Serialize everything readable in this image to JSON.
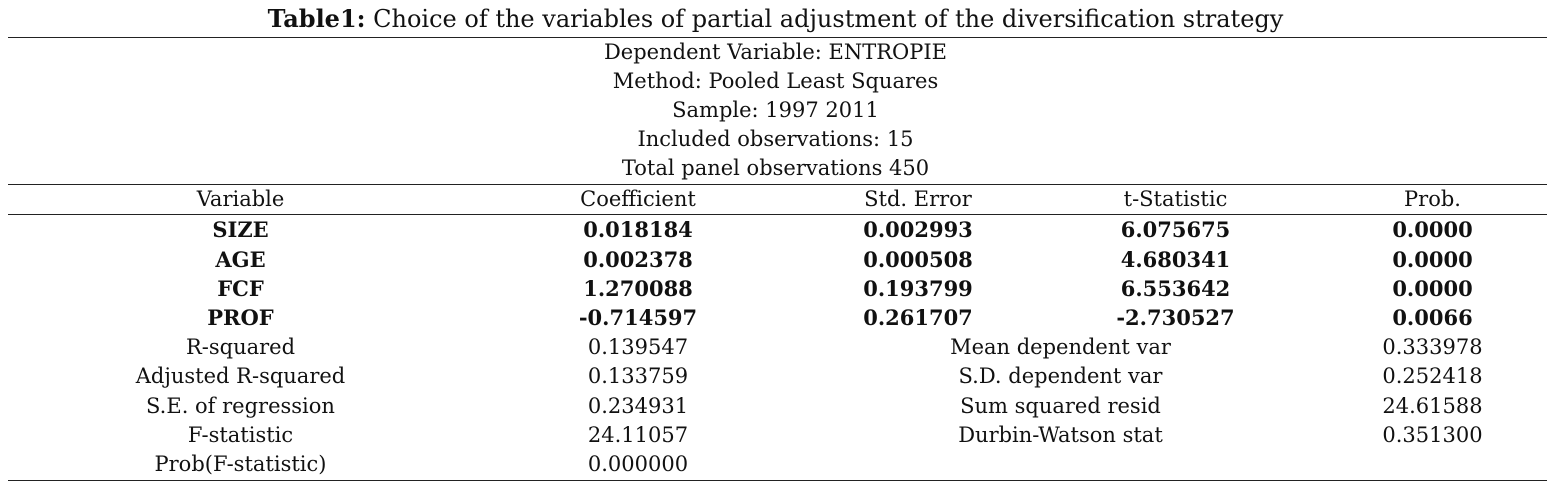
{
  "title": {
    "bold": "Table1:",
    "text": " Choice of the variables of partial adjustment of the diversification strategy"
  },
  "info": [
    "Dependent Variable: ENTROPIE",
    "Method: Pooled Least Squares",
    "Sample: 1997 2011",
    "Included observations: 15",
    "Total panel observations 450"
  ],
  "columns": [
    "Variable",
    "Coefficient",
    "Std. Error",
    "t-Statistic",
    "Prob."
  ],
  "coefficients": [
    {
      "variable": "SIZE",
      "coefficient": "0.018184",
      "std_error": "0.002993",
      "t_stat": "6.075675",
      "prob": "0.0000"
    },
    {
      "variable": "AGE",
      "coefficient": "0.002378",
      "std_error": "0.000508",
      "t_stat": "4.680341",
      "prob": "0.0000"
    },
    {
      "variable": "FCF",
      "coefficient": "1.270088",
      "std_error": "0.193799",
      "t_stat": "6.553642",
      "prob": "0.0000"
    },
    {
      "variable": "PROF",
      "coefficient": "-0.714597",
      "std_error": "0.261707",
      "t_stat": "-2.730527",
      "prob": "0.0066"
    }
  ],
  "stats": [
    {
      "label": "R-squared",
      "value": "0.139547",
      "label2": "Mean dependent var",
      "value2": "0.333978"
    },
    {
      "label": "Adjusted R-squared",
      "value": "0.133759",
      "label2": "S.D. dependent var",
      "value2": "0.252418"
    },
    {
      "label": "S.E. of regression",
      "value": "0.234931",
      "label2": "Sum squared resid",
      "value2": "24.61588"
    },
    {
      "label": "F-statistic",
      "value": "24.11057",
      "label2": "Durbin-Watson stat",
      "value2": "0.351300"
    },
    {
      "label": "Prob(F-statistic)",
      "value": "0.000000",
      "label2": "",
      "value2": ""
    }
  ]
}
